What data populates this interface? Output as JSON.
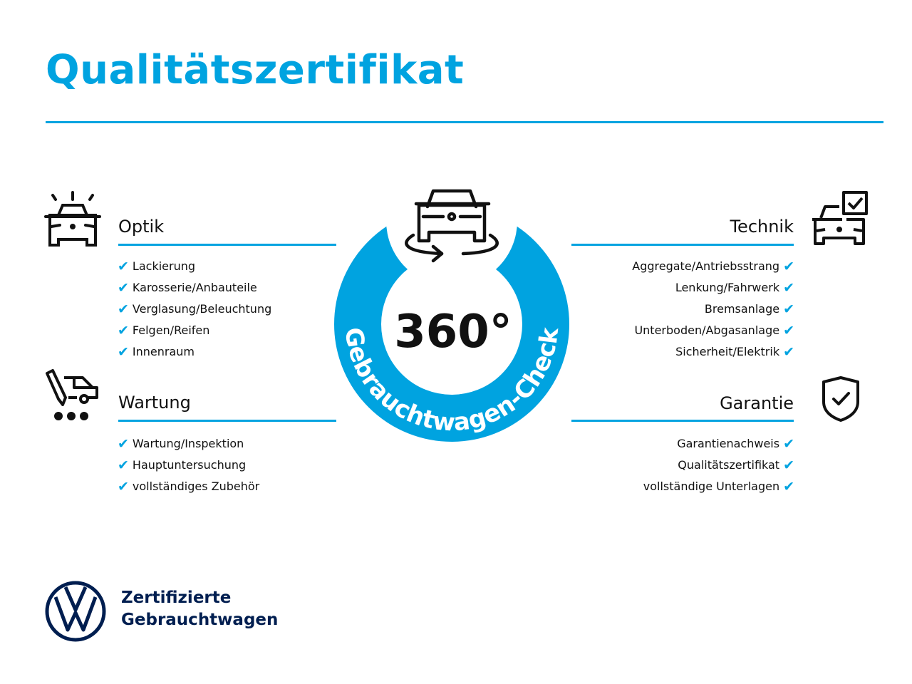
{
  "title": "Qualitätszertifikat",
  "colors": {
    "accent": "#00a3e0",
    "brand": "#001e50"
  },
  "badge": {
    "big": "360°",
    "ring_text": "Gebrauchtwagen-Check",
    "icon": "car-rotate-icon"
  },
  "sections": {
    "optik": {
      "title": "Optik",
      "icon": "car-lights-icon",
      "items": [
        "Lackierung",
        "Karosserie/Anbauteile",
        "Verglasung/Beleuchtung",
        "Felgen/Reifen",
        "Innenraum"
      ]
    },
    "wartung": {
      "title": "Wartung",
      "icon": "service-car-icon",
      "items": [
        "Wartung/Inspektion",
        "Hauptuntersuchung",
        "vollständiges Zubehör"
      ]
    },
    "technik": {
      "title": "Technik",
      "icon": "car-checkbox-icon",
      "items": [
        "Aggregate/Antriebsstrang",
        "Lenkung/Fahrwerk",
        "Bremsanlage",
        "Unterboden/Abgasanlage",
        "Sicherheit/Elektrik"
      ]
    },
    "garantie": {
      "title": "Garantie",
      "icon": "shield-check-icon",
      "items": [
        "Garantienachweis",
        "Qualitätszertifikat",
        "vollständige Unterlagen"
      ]
    }
  },
  "check_glyph": "✔",
  "footer": {
    "logo": "VW",
    "line1": "Zertifizierte",
    "line2": "Gebrauchtwagen"
  }
}
